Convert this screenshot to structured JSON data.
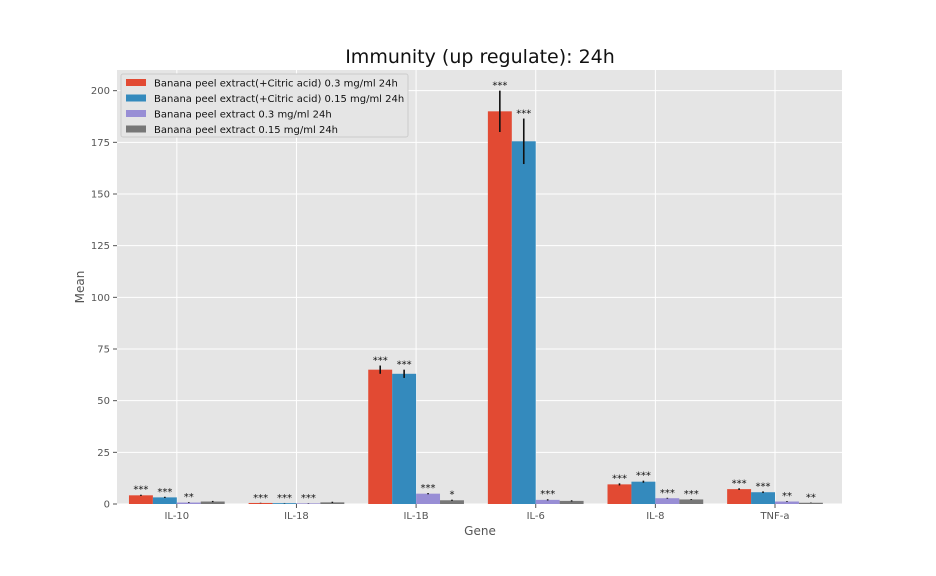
{
  "chart_data": {
    "type": "bar",
    "title": "Immunity (up regulate): 24h",
    "xlabel": "Gene",
    "ylabel": "Mean",
    "ylim": [
      0,
      210
    ],
    "yticks": [
      0,
      25,
      50,
      75,
      100,
      125,
      150,
      175,
      200
    ],
    "grid": true,
    "legend_position": "top-left",
    "categories": [
      "IL-10",
      "IL-18",
      "IL-1B",
      "IL-6",
      "IL-8",
      "TNF-a"
    ],
    "series": [
      {
        "name": "Banana peel extract(+Citric acid) 0.3 mg/ml 24h",
        "color": "#E24A33",
        "values": [
          4.2,
          0.5,
          65,
          190,
          9.5,
          7.2
        ],
        "errors": [
          0.3,
          0.1,
          2,
          10,
          0.5,
          0.4
        ],
        "sig": [
          "***",
          "***",
          "***",
          "***",
          "***",
          "***"
        ]
      },
      {
        "name": "Banana peel extract(+Citric acid) 0.15 mg/ml 24h",
        "color": "#348ABD",
        "values": [
          3.2,
          0.4,
          63,
          175.5,
          10.8,
          5.7
        ],
        "errors": [
          0.3,
          0.1,
          2,
          11,
          0.5,
          0.4
        ],
        "sig": [
          "***",
          "***",
          "***",
          "***",
          "***",
          "***"
        ]
      },
      {
        "name": "Banana peel extract 0.3 mg/ml 24h",
        "color": "#988ED5",
        "values": [
          0.7,
          0.3,
          5,
          2,
          2.8,
          1.2
        ],
        "errors": [
          0.2,
          0.1,
          0.3,
          0.3,
          0.2,
          0.2
        ],
        "sig": [
          "**",
          "***",
          "***",
          "***",
          "***",
          "**"
        ]
      },
      {
        "name": "Banana peel extract 0.15 mg/ml 24h",
        "color": "#777777",
        "values": [
          1.2,
          0.8,
          1.8,
          1.5,
          2.2,
          0.6
        ],
        "errors": [
          0.3,
          0.3,
          0.3,
          0.3,
          0.2,
          0.1
        ],
        "sig": [
          "",
          "",
          "*",
          "",
          "***",
          "**"
        ]
      }
    ]
  }
}
